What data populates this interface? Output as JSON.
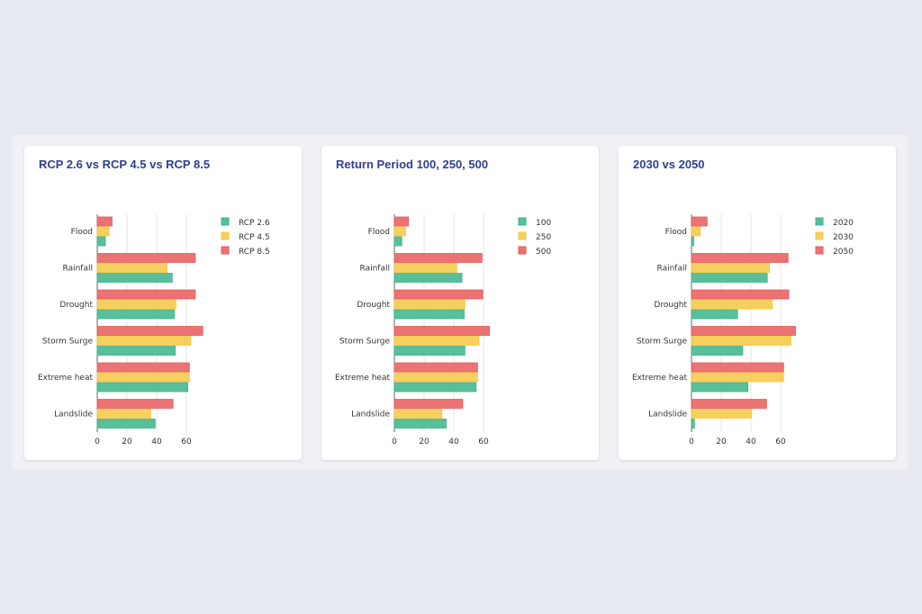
{
  "chart_data": [
    {
      "type": "bar",
      "orientation": "horizontal",
      "title": "RCP 2.6 vs RCP 4.5 vs RCP 8.5",
      "categories": [
        "Flood",
        "Rainfall",
        "Drought",
        "Storm Surge",
        "Extreme heat",
        "Landslide"
      ],
      "series": [
        {
          "name": "RCP 2.6",
          "color": "#3cb48a",
          "values": [
            5.5,
            50.5,
            52,
            52.5,
            61,
            39
          ]
        },
        {
          "name": "RCP 4.5",
          "color": "#f5c842",
          "values": [
            8,
            47,
            53,
            63,
            62,
            36
          ]
        },
        {
          "name": "RCP 8.5",
          "color": "#e85a5a",
          "values": [
            10,
            66,
            66,
            71,
            62,
            51
          ]
        }
      ],
      "xticks": [
        0,
        20,
        40,
        60
      ],
      "xlim": [
        0,
        72
      ],
      "grid": true,
      "legend": "top-right"
    },
    {
      "type": "bar",
      "orientation": "horizontal",
      "title": "Return Period 100, 250, 500",
      "categories": [
        "Flood",
        "Rainfall",
        "Drought",
        "Storm Surge",
        "Extreme heat",
        "Landslide"
      ],
      "series": [
        {
          "name": "100",
          "color": "#3cb48a",
          "values": [
            5,
            45.5,
            47,
            47.5,
            55,
            35
          ]
        },
        {
          "name": "250",
          "color": "#f5c842",
          "values": [
            7.5,
            42,
            47.5,
            57,
            56,
            32
          ]
        },
        {
          "name": "500",
          "color": "#e85a5a",
          "values": [
            9.5,
            59,
            59.5,
            64,
            56,
            46
          ]
        }
      ],
      "xticks": [
        0,
        20,
        40,
        60
      ],
      "xlim": [
        0,
        72
      ],
      "grid": true,
      "legend": "top-right"
    },
    {
      "type": "bar",
      "orientation": "horizontal",
      "title": "2030 vs 2050",
      "categories": [
        "Flood",
        "Rainfall",
        "Drought",
        "Storm Surge",
        "Extreme heat",
        "Landslide"
      ],
      "series": [
        {
          "name": "2020",
          "color": "#3cb48a",
          "values": [
            1.5,
            51,
            31,
            34.5,
            38,
            2
          ]
        },
        {
          "name": "2030",
          "color": "#f5c842",
          "values": [
            6,
            52.5,
            54.5,
            67,
            62,
            40.5
          ]
        },
        {
          "name": "2050",
          "color": "#e85a5a",
          "values": [
            10.5,
            65,
            65.5,
            70,
            62,
            50.5
          ]
        }
      ],
      "xticks": [
        0,
        20,
        40,
        60
      ],
      "xlim": [
        0,
        72
      ],
      "grid": true,
      "legend": "top-right"
    }
  ]
}
